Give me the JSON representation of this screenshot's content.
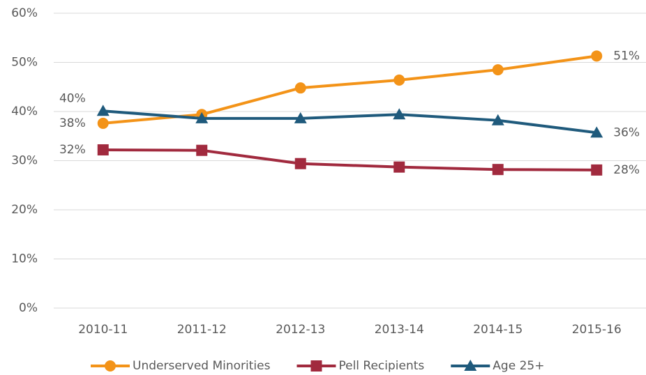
{
  "chart_data": {
    "type": "line",
    "categories": [
      "2010-11",
      "2011-12",
      "2012-13",
      "2013-14",
      "2014-15",
      "2015-16"
    ],
    "series": [
      {
        "name": "Underserved Minorities",
        "color": "#f39318",
        "marker": "circle",
        "values": [
          37.6,
          39.4,
          44.8,
          46.4,
          48.5,
          51.3
        ],
        "value_labels": [
          "38%",
          null,
          null,
          null,
          null,
          "51%"
        ]
      },
      {
        "name": "Pell Recipients",
        "color": "#a12a3e",
        "marker": "square",
        "values": [
          32.2,
          32.1,
          29.4,
          28.7,
          28.2,
          28.1
        ],
        "value_labels": [
          "32%",
          null,
          null,
          null,
          null,
          "28%"
        ]
      },
      {
        "name": "Age 25+",
        "color": "#1f5a7c",
        "marker": "triangle",
        "values": [
          40.1,
          38.6,
          38.6,
          39.4,
          38.2,
          35.7
        ],
        "value_labels": [
          "40%",
          null,
          null,
          null,
          null,
          "36%"
        ]
      }
    ],
    "ylim": [
      0,
      60
    ],
    "yticks": [
      {
        "value": 0,
        "label": "0%"
      },
      {
        "value": 10,
        "label": "10%"
      },
      {
        "value": 20,
        "label": "20%"
      },
      {
        "value": 30,
        "label": "30%"
      },
      {
        "value": 40,
        "label": "40%"
      },
      {
        "value": 50,
        "label": "50%"
      },
      {
        "value": 60,
        "label": "60%"
      }
    ],
    "grid": true,
    "legend": "bottom"
  }
}
